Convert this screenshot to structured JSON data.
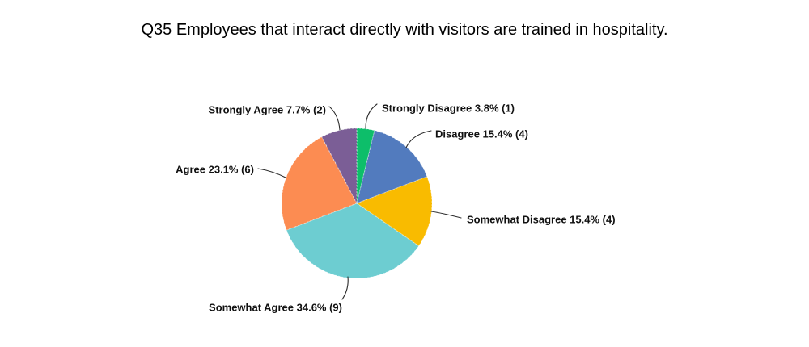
{
  "title": "Q35 Employees that interact directly with visitors are trained in hospitality.",
  "chart_data": {
    "type": "pie",
    "title": "Q35 Employees that interact directly with visitors are trained in hospitality.",
    "legend_position": "none",
    "labels_style": "callout-leader-lines",
    "start_angle": "12-oclock-clockwise",
    "slices": [
      {
        "label": "Strongly Disagree",
        "percent": 3.8,
        "count": 1,
        "display": "Strongly Disagree 3.8% (1)",
        "color": "#0dbe6a"
      },
      {
        "label": "Disagree",
        "percent": 15.4,
        "count": 4,
        "display": "Disagree 15.4% (4)",
        "color": "#527bbe"
      },
      {
        "label": "Somewhat Disagree",
        "percent": 15.4,
        "count": 4,
        "display": "Somewhat Disagree 15.4% (4)",
        "color": "#f9bb00"
      },
      {
        "label": "Somewhat Agree",
        "percent": 34.6,
        "count": 9,
        "display": "Somewhat Agree 34.6% (9)",
        "color": "#6dcdd1"
      },
      {
        "label": "Agree",
        "percent": 23.1,
        "count": 6,
        "display": "Agree 23.1% (6)",
        "color": "#fc8c52"
      },
      {
        "label": "Strongly Agree",
        "percent": 7.7,
        "count": 2,
        "display": "Strongly Agree 7.7% (2)",
        "color": "#7b5e96"
      }
    ]
  }
}
